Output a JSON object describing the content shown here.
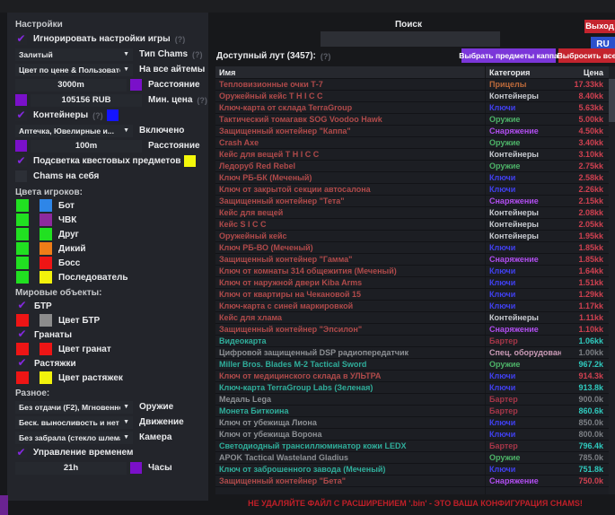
{
  "accent_colors": {
    "check_purple": "#8428e0",
    "exit_red": "#c4242e",
    "ru_blue": "#2b50cc",
    "kappa_purple": "#7b36d9"
  },
  "settings": {
    "title": "Настройки",
    "ignore_game_settings": {
      "label": "Игнорировать настройки игры",
      "hint": "(?)"
    },
    "chams_type": {
      "value": "Залитый",
      "label": "Тип Chams",
      "hint": "(?)"
    },
    "color_mode": {
      "value": "Цвет по цене & Пользователь",
      "label": "На все айтемы"
    },
    "distance": {
      "value": "3000m",
      "label": "Расстояние",
      "swatch": "#7a10c9"
    },
    "min_price": {
      "value": "105156 RUB",
      "label": "Мин. цена",
      "hint": "(?)",
      "swatch": "#7a10c9"
    },
    "containers": {
      "label": "Контейнеры",
      "hint": "(?)",
      "swatch": "#1414ff"
    },
    "containers_type": {
      "value": "Аптечка, Ювелирные и...",
      "label": "Включено"
    },
    "containers_distance": {
      "value": "100m",
      "label": "Расстояние",
      "swatch": "#7a10c9"
    },
    "quest_highlight": {
      "label": "Подсветка квестовых предметов",
      "swatch": "#f4f80a"
    },
    "chams_self": {
      "label": "Chams на себя"
    }
  },
  "player_colors": {
    "title": "Цвета игроков:",
    "rows": [
      {
        "label": "Бот",
        "c1": "#21e021",
        "c2": "#2e86e8"
      },
      {
        "label": "ЧВК",
        "c1": "#21e021",
        "c2": "#8e2a9e"
      },
      {
        "label": "Друг",
        "c1": "#21e021",
        "c2": "#21e021"
      },
      {
        "label": "Дикий",
        "c1": "#21e021",
        "c2": "#ef7d18"
      },
      {
        "label": "Босс",
        "c1": "#21e021",
        "c2": "#ee1515"
      },
      {
        "label": "Последователь",
        "c1": "#21e021",
        "c2": "#f2f20c"
      }
    ]
  },
  "world_objects": {
    "title": "Мировые объекты:",
    "btr": {
      "label": "БТР"
    },
    "btr_color": {
      "label": "Цвет БТР",
      "c1": "#ee1515",
      "c2": "#8c8c8c"
    },
    "grenades": {
      "label": "Гранаты"
    },
    "grenades_color": {
      "label": "Цвет гранат",
      "c1": "#ee1515",
      "c2": "#ee1515"
    },
    "tripwires": {
      "label": "Растяжки"
    },
    "tripwires_color": {
      "label": "Цвет растяжек",
      "c1": "#ee1515",
      "c2": "#f2f20c"
    }
  },
  "misc": {
    "title": "Разное:",
    "weapon": {
      "value": "Без отдачи (F2), Мгновенное п",
      "label": "Оружие"
    },
    "movement": {
      "value": "Беск. выносливость и нет уста",
      "label": "Движение"
    },
    "camera": {
      "value": "Без забрала (стекло шлема)",
      "label": "Камера"
    },
    "time_control": {
      "label": "Управление временем"
    },
    "hours": {
      "value": "21h",
      "label": "Часы",
      "swatch": "#7a10c9"
    }
  },
  "top": {
    "search_label": "Поиск",
    "exit_label": "Выход",
    "lang_label": "RU"
  },
  "loot": {
    "title": "Доступный лут (3457):",
    "hint": "(?)",
    "kappa_button": "Выбрать предметы каппа",
    "drop_button": "Выбросить все",
    "columns": {
      "name": "Имя",
      "category": "Категория",
      "price": "Цена"
    },
    "category_colors": {
      "Прицелы": "#bd6a3a",
      "Контейнеры": "#c9ccd1",
      "Ключи": "#4040f0",
      "Оружие": "#4db368",
      "Снаряжение": "#b14df0",
      "Бартер": "#a63648",
      "Спец. оборудование": "#c99ab6"
    },
    "tone_colors": {
      "red": {
        "name": "#b04a4a",
        "price": "#cf4050"
      },
      "teal": {
        "name": "#2fae9b",
        "price": "#2fc9bd"
      },
      "gray": {
        "name": "#8d9094",
        "price": "#7c7f84"
      }
    },
    "rows": [
      {
        "name": "Тепловизионные очки Т-7",
        "category": "Прицелы",
        "price": "17.33kk",
        "tone": "red"
      },
      {
        "name": "Оружейный кейс T H I C C",
        "category": "Контейнеры",
        "price": "8.40kk",
        "tone": "red"
      },
      {
        "name": "Ключ-карта от склада TerraGroup",
        "category": "Ключи",
        "price": "5.63kk",
        "tone": "red"
      },
      {
        "name": "Тактический томагавк SOG Voodoo Hawk",
        "category": "Оружие",
        "price": "5.00kk",
        "tone": "red"
      },
      {
        "name": "Защищенный контейнер \"Каппа\"",
        "category": "Снаряжение",
        "price": "4.50kk",
        "tone": "red"
      },
      {
        "name": "Crash Axe",
        "category": "Оружие",
        "price": "3.40kk",
        "tone": "red"
      },
      {
        "name": "Кейс для вещей T H I C C",
        "category": "Контейнеры",
        "price": "3.10kk",
        "tone": "red"
      },
      {
        "name": "Ледоруб Red Rebel",
        "category": "Оружие",
        "price": "2.75kk",
        "tone": "red"
      },
      {
        "name": "Ключ РБ-БК (Меченый)",
        "category": "Ключи",
        "price": "2.58kk",
        "tone": "red"
      },
      {
        "name": "Ключ от закрытой секции автосалона",
        "category": "Ключи",
        "price": "2.26kk",
        "tone": "red"
      },
      {
        "name": "Защищенный контейнер \"Тета\"",
        "category": "Снаряжение",
        "price": "2.15kk",
        "tone": "red"
      },
      {
        "name": "Кейс для вещей",
        "category": "Контейнеры",
        "price": "2.08kk",
        "tone": "red"
      },
      {
        "name": "Кейс S I C C",
        "category": "Контейнеры",
        "price": "2.05kk",
        "tone": "red"
      },
      {
        "name": "Оружейный кейс",
        "category": "Контейнеры",
        "price": "1.95kk",
        "tone": "red"
      },
      {
        "name": "Ключ РБ-ВО (Меченый)",
        "category": "Ключи",
        "price": "1.85kk",
        "tone": "red"
      },
      {
        "name": "Защищенный контейнер \"Гамма\"",
        "category": "Снаряжение",
        "price": "1.85kk",
        "tone": "red"
      },
      {
        "name": "Ключ от комнаты 314 общежития (Меченый)",
        "category": "Ключи",
        "price": "1.64kk",
        "tone": "red"
      },
      {
        "name": "Ключ от наружной двери Kiba Arms",
        "category": "Ключи",
        "price": "1.51kk",
        "tone": "red"
      },
      {
        "name": "Ключ от квартиры на Чекановой 15",
        "category": "Ключи",
        "price": "1.29kk",
        "tone": "red"
      },
      {
        "name": "Ключ-карта с синей маркировкой",
        "category": "Ключи",
        "price": "1.17kk",
        "tone": "red"
      },
      {
        "name": "Кейс для хлама",
        "category": "Контейнеры",
        "price": "1.11kk",
        "tone": "red"
      },
      {
        "name": "Защищенный контейнер \"Эпсилон\"",
        "category": "Снаряжение",
        "price": "1.10kk",
        "tone": "red"
      },
      {
        "name": "Видеокарта",
        "category": "Бартер",
        "price": "1.06kk",
        "tone": "teal"
      },
      {
        "name": "Цифровой защищенный DSP радиопередатчик",
        "category": "Спец. оборудование",
        "price": "1.00kk",
        "tone": "gray"
      },
      {
        "name": "Miller Bros. Blades M-2 Tactical Sword",
        "category": "Оружие",
        "price": "967.2k",
        "tone": "teal"
      },
      {
        "name": "Ключ от медицинского склада в УЛЬТРА",
        "category": "Ключи",
        "price": "914.3k",
        "tone": "red"
      },
      {
        "name": "Ключ-карта TerraGroup Labs (Зеленая)",
        "category": "Ключи",
        "price": "913.8k",
        "tone": "teal"
      },
      {
        "name": "Медаль Lega",
        "category": "Бартер",
        "price": "900.0k",
        "tone": "gray"
      },
      {
        "name": "Монета Биткоина",
        "category": "Бартер",
        "price": "860.6k",
        "tone": "teal"
      },
      {
        "name": "Ключ от убежища Лиона",
        "category": "Ключи",
        "price": "850.0k",
        "tone": "gray"
      },
      {
        "name": "Ключ от убежища Ворона",
        "category": "Ключи",
        "price": "800.0k",
        "tone": "gray"
      },
      {
        "name": "Светодиодный трансиллюминатор кожи LEDX",
        "category": "Бартер",
        "price": "796.4k",
        "tone": "teal"
      },
      {
        "name": "APOK Tactical Wasteland Gladius",
        "category": "Оружие",
        "price": "785.0k",
        "tone": "gray"
      },
      {
        "name": "Ключ от заброшенного завода (Меченый)",
        "category": "Ключи",
        "price": "751.8k",
        "tone": "teal"
      },
      {
        "name": "Защищенный контейнер \"Бета\"",
        "category": "Снаряжение",
        "price": "750.0k",
        "tone": "red"
      },
      {
        "name": "",
        "category": "",
        "price": "",
        "tone": "gray"
      }
    ]
  },
  "footer": {
    "warning": "НЕ УДАЛЯЙТЕ ФАЙЛ С РАСШИРЕНИЕМ '.bin' - ЭТО ВАША КОНФИГУРАЦИЯ CHAMS!"
  }
}
